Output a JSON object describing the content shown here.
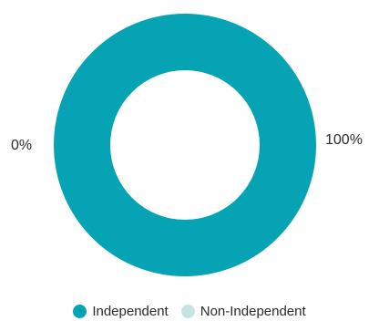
{
  "chart_data": {
    "type": "pie",
    "title": "",
    "categories": [
      "Independent",
      "Non-Independent"
    ],
    "values": [
      100,
      0
    ],
    "value_labels": [
      "100%",
      "0%"
    ],
    "colors": [
      "#06a3b4",
      "#c4e4e3"
    ],
    "donut": true,
    "legend_position": "bottom"
  }
}
